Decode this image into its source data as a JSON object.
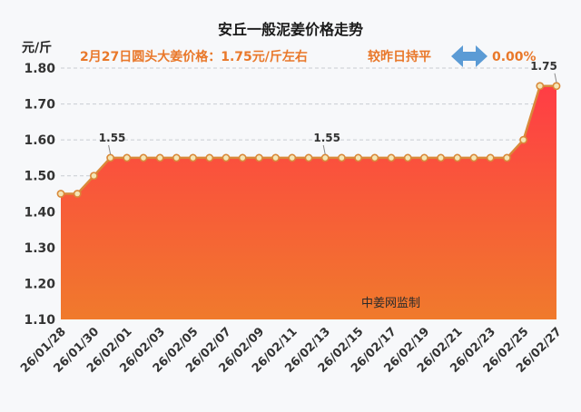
{
  "chart_data": {
    "type": "area",
    "title": "安丘一般泥姜价格走势",
    "subtitle_price": "2月27日圆头大姜价格：1.75元/斤左右",
    "subtitle_change_label": "较昨日持平",
    "subtitle_change_value": "0.00%",
    "ylabel": "元/斤",
    "ylim": [
      1.1,
      1.8
    ],
    "yticks": [
      "1.10",
      "1.20",
      "1.30",
      "1.40",
      "1.50",
      "1.60",
      "1.70",
      "1.80"
    ],
    "x": [
      "26/01/28",
      "26/01/29",
      "26/01/30",
      "26/01/31",
      "26/02/01",
      "26/02/02",
      "26/02/03",
      "26/02/04",
      "26/02/05",
      "26/02/06",
      "26/02/07",
      "26/02/08",
      "26/02/09",
      "26/02/10",
      "26/02/11",
      "26/02/12",
      "26/02/13",
      "26/02/14",
      "26/02/15",
      "26/02/16",
      "26/02/17",
      "26/02/18",
      "26/02/19",
      "26/02/20",
      "26/02/21",
      "26/02/22",
      "26/02/23",
      "26/02/24",
      "26/02/25",
      "26/02/26",
      "26/02/27"
    ],
    "xtick_labels": [
      "26/01/28",
      "26/01/30",
      "26/02/01",
      "26/02/03",
      "26/02/05",
      "26/02/07",
      "26/02/09",
      "26/02/11",
      "26/02/13",
      "26/02/15",
      "26/02/17",
      "26/02/19",
      "26/02/21",
      "26/02/23",
      "26/02/25",
      "26/02/27"
    ],
    "series": [
      {
        "values": [
          1.45,
          1.45,
          1.5,
          1.55,
          1.55,
          1.55,
          1.55,
          1.55,
          1.55,
          1.55,
          1.55,
          1.55,
          1.55,
          1.55,
          1.55,
          1.55,
          1.55,
          1.55,
          1.55,
          1.55,
          1.55,
          1.55,
          1.55,
          1.55,
          1.55,
          1.55,
          1.55,
          1.55,
          1.6,
          1.75,
          1.75
        ]
      }
    ],
    "data_labels": [
      {
        "date": "26/01/31",
        "text": "1.55"
      },
      {
        "date": "26/02/13",
        "text": "1.55"
      },
      {
        "date": "26/02/27",
        "text": "1.75"
      }
    ],
    "grid": true,
    "colors": {
      "line": "#d9893a",
      "marker_fill": "#f4e6b6",
      "area_top": "#ff3d45",
      "area_bottom": "#f07a2c",
      "arrow": "#5b9bd5"
    },
    "watermark": "中姜网监制"
  }
}
